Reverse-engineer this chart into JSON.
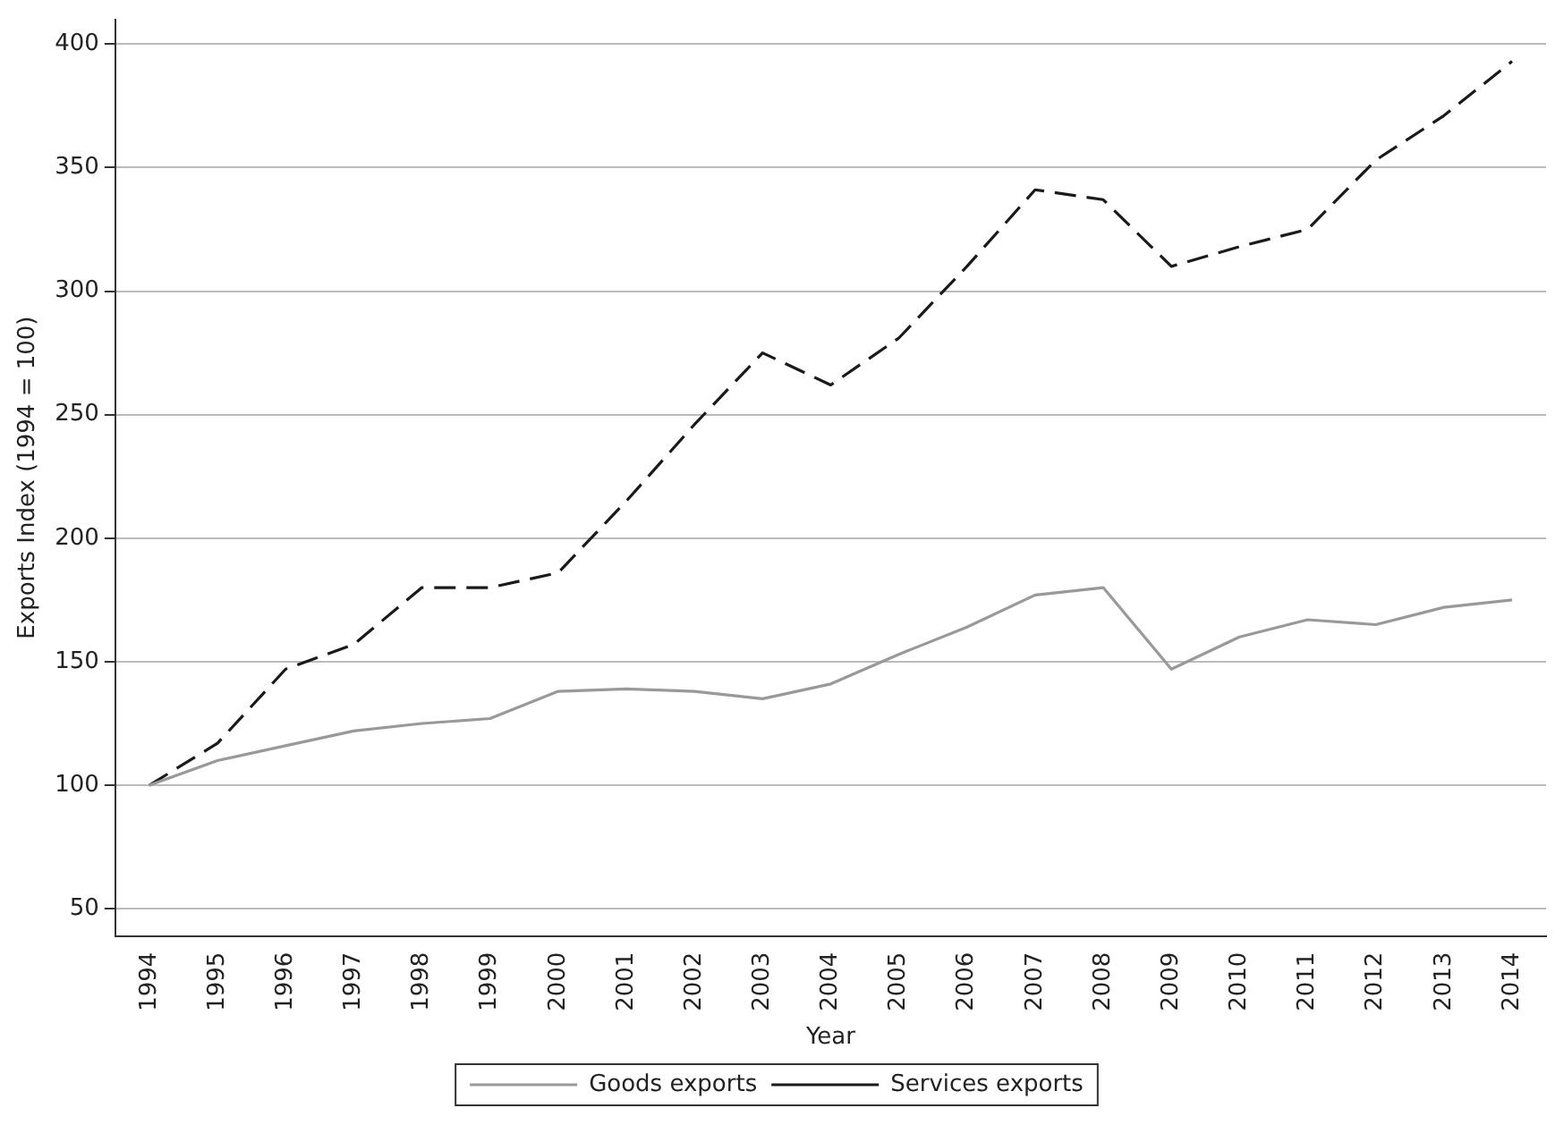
{
  "chart_data": {
    "type": "line",
    "xlabel": "Year",
    "ylabel": "Exports Index (1994 = 100)",
    "categories": [
      "1994",
      "1995",
      "1996",
      "1997",
      "1998",
      "1999",
      "2000",
      "2001",
      "2002",
      "2003",
      "2004",
      "2005",
      "2006",
      "2007",
      "2008",
      "2009",
      "2010",
      "2011",
      "2012",
      "2013",
      "2014"
    ],
    "series": [
      {
        "name": "Goods exports",
        "color": "#999999",
        "line_style": "solid",
        "values": [
          100,
          110,
          116,
          122,
          125,
          127,
          138,
          139,
          138,
          135,
          141,
          153,
          164,
          177,
          180,
          147,
          160,
          167,
          165,
          172,
          175
        ]
      },
      {
        "name": "Services exports",
        "color": "#1a1a1a",
        "line_style": "dashed",
        "values": [
          100,
          117,
          147,
          157,
          180,
          180,
          186,
          215,
          246,
          275,
          262,
          281,
          310,
          341,
          337,
          310,
          318,
          325,
          353,
          371,
          393
        ]
      }
    ],
    "ylim": [
      39,
      410
    ],
    "yticks": [
      50,
      100,
      150,
      200,
      250,
      300,
      350,
      400
    ],
    "grid": "y",
    "legend": "bottom",
    "marker": "none"
  }
}
